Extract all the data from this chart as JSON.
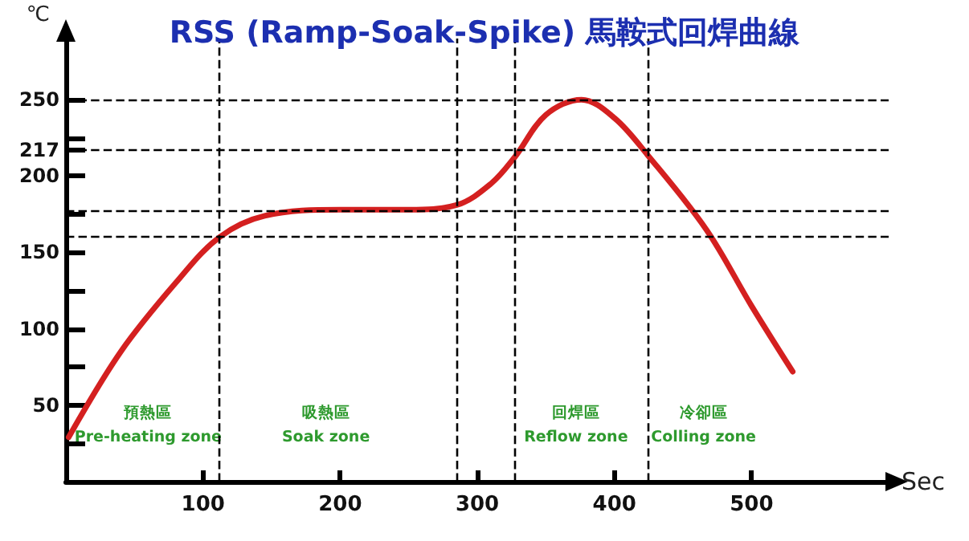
{
  "chart_data": {
    "type": "line",
    "title": "RSS (Ramp-Soak-Spike) 馬鞍式回焊曲線",
    "xlabel": "Sec",
    "ylabel": "℃",
    "x": [
      2,
      40,
      80,
      112,
      145,
      200,
      250,
      285,
      310,
      327,
      350,
      376,
      400,
      424,
      467,
      500,
      530
    ],
    "series": [
      {
        "color": "#d42020",
        "values": [
          29,
          85,
          130,
          160,
          174,
          178,
          178,
          181,
          195,
          212,
          240,
          250,
          238,
          214,
          165,
          115,
          72
        ]
      }
    ],
    "xlim": [
      0,
      600
    ],
    "ylim": [
      0,
      290
    ],
    "xticks": [
      100,
      200,
      300,
      400,
      500
    ],
    "yticks": [
      {
        "value": 25,
        "label": null
      },
      50,
      {
        "value": 75,
        "label": null
      },
      100,
      {
        "value": 125,
        "label": null
      },
      150,
      {
        "value": 175,
        "label": null
      },
      200,
      217,
      {
        "value": 225,
        "label": null
      },
      250
    ],
    "ref_lines": [
      {
        "axis": "y",
        "value": 250,
        "color": "#000000",
        "line_style": "dashed"
      },
      {
        "axis": "y",
        "value": 217,
        "color": "#000000",
        "line_style": "dashed"
      },
      {
        "axis": "y",
        "value": 177,
        "color": "#000000",
        "line_style": "dashed"
      },
      {
        "axis": "y",
        "value": 160,
        "color": "#000000",
        "line_style": "dashed"
      },
      {
        "axis": "x",
        "value": 112,
        "color": "#000000",
        "line_style": "dashed"
      },
      {
        "axis": "x",
        "value": 285,
        "color": "#000000",
        "line_style": "dashed"
      },
      {
        "axis": "x",
        "value": 327,
        "color": "#000000",
        "line_style": "dashed"
      },
      {
        "axis": "x",
        "value": 424,
        "color": "#000000",
        "line_style": "dashed"
      }
    ],
    "annotations": [
      "預熱區\nPre-heating zone",
      "吸熱區\nSoak zone",
      "回焊區\nReflow zone",
      "冷卻區\nColling zone"
    ],
    "grid": false,
    "marker": "none",
    "line_style": "solid"
  }
}
